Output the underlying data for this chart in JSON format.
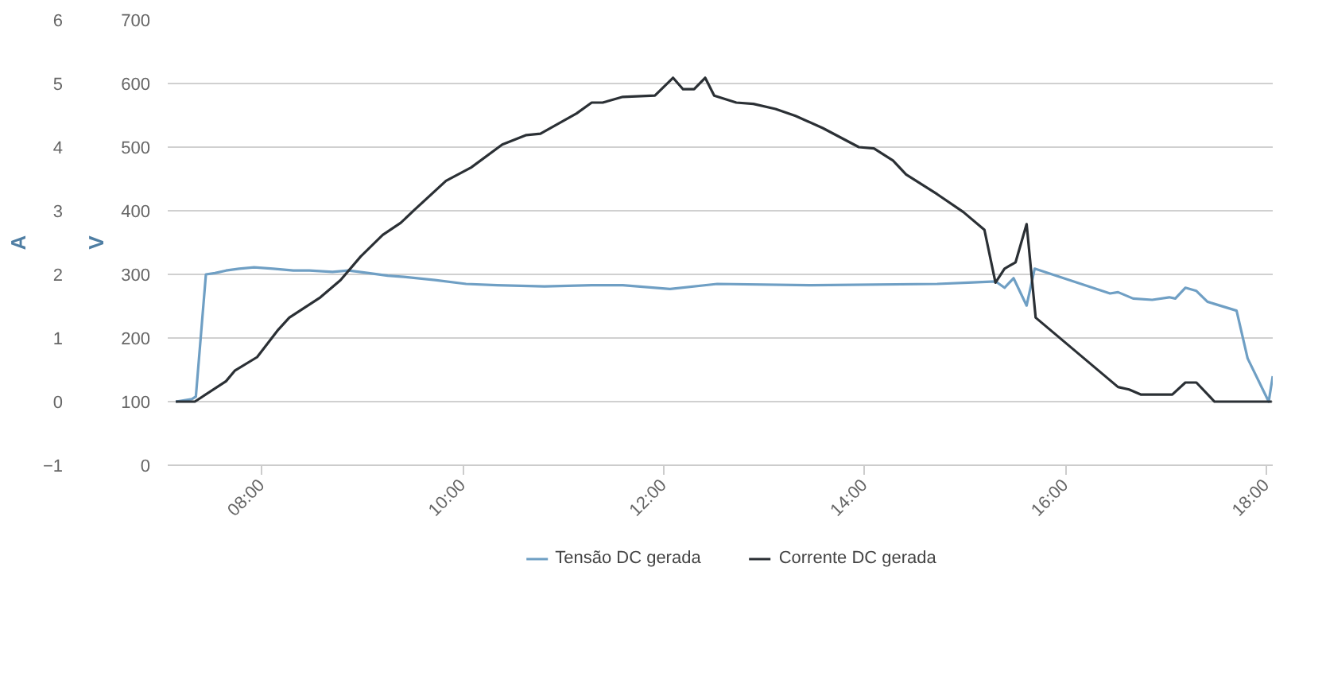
{
  "chart_data": {
    "type": "line",
    "ylabel": "V",
    "y2label": "A",
    "xlim": [
      7.06,
      18.06
    ],
    "xticks": [
      {
        "value": 8,
        "label": "08:00"
      },
      {
        "value": 10,
        "label": "10:00"
      },
      {
        "value": 12,
        "label": "12:00"
      },
      {
        "value": 14,
        "label": "14:00"
      },
      {
        "value": 16,
        "label": "16:00"
      },
      {
        "value": 18,
        "label": "18:00"
      }
    ],
    "ylim": [
      0,
      700
    ],
    "yticks": [
      0,
      100,
      200,
      300,
      400,
      500,
      600,
      700
    ],
    "y2lim": [
      -1,
      6
    ],
    "y2ticks": [
      -1,
      0,
      1,
      2,
      3,
      4,
      5,
      6
    ],
    "grid": "y",
    "legend": "bottom",
    "series": [
      {
        "name": "Tensão DC gerada",
        "color": "#6f9fc4",
        "x": [
          7.14,
          7.3,
          7.34,
          7.44,
          7.53,
          7.64,
          7.77,
          7.92,
          8.11,
          8.31,
          8.47,
          8.7,
          8.86,
          9.06,
          9.25,
          9.41,
          9.72,
          10.03,
          10.34,
          10.81,
          11.28,
          11.59,
          12.06,
          12.53,
          13.47,
          14.72,
          15.03,
          15.3,
          15.39,
          15.48,
          15.61,
          15.69,
          16.44,
          16.52,
          16.67,
          16.86,
          17.03,
          17.09,
          17.19,
          17.3,
          17.41,
          17.7,
          17.81,
          18.02,
          18.06
        ],
        "values": [
          100,
          104,
          108,
          300,
          302,
          306,
          309,
          311,
          309,
          306,
          306,
          304,
          306,
          302,
          298,
          296,
          291,
          285,
          283,
          281,
          283,
          283,
          277,
          285,
          283,
          285,
          287,
          289,
          279,
          294,
          251,
          309,
          270,
          272,
          262,
          260,
          264,
          262,
          279,
          274,
          257,
          243,
          168,
          100,
          140
        ]
      },
      {
        "name": "Corrente DC gerada",
        "color": "#2b3035",
        "axis": "y2",
        "x": [
          7.14,
          7.33,
          7.64,
          7.73,
          7.95,
          8.16,
          8.27,
          8.58,
          8.78,
          8.98,
          9.2,
          9.38,
          9.52,
          9.83,
          10.08,
          10.39,
          10.63,
          10.77,
          11.13,
          11.28,
          11.39,
          11.59,
          11.91,
          12.09,
          12.19,
          12.3,
          12.41,
          12.5,
          12.72,
          12.89,
          13.11,
          13.31,
          13.58,
          13.94,
          14.09,
          14.28,
          14.41,
          14.72,
          14.98,
          15.19,
          15.3,
          15.39,
          15.5,
          15.61,
          15.7,
          16.52,
          16.63,
          16.75,
          17.06,
          17.19,
          17.3,
          17.48,
          18.05
        ],
        "values": [
          0,
          0,
          0.32,
          0.49,
          0.7,
          1.13,
          1.32,
          1.64,
          1.91,
          2.28,
          2.62,
          2.81,
          3.02,
          3.47,
          3.68,
          4.04,
          4.19,
          4.21,
          4.53,
          4.7,
          4.7,
          4.79,
          4.81,
          5.09,
          4.91,
          4.91,
          5.09,
          4.81,
          4.7,
          4.68,
          4.6,
          4.49,
          4.3,
          4.0,
          3.98,
          3.79,
          3.57,
          3.26,
          2.98,
          2.7,
          1.87,
          2.09,
          2.19,
          2.79,
          1.32,
          0.23,
          0.19,
          0.11,
          0.11,
          0.3,
          0.3,
          0,
          0
        ]
      }
    ]
  }
}
